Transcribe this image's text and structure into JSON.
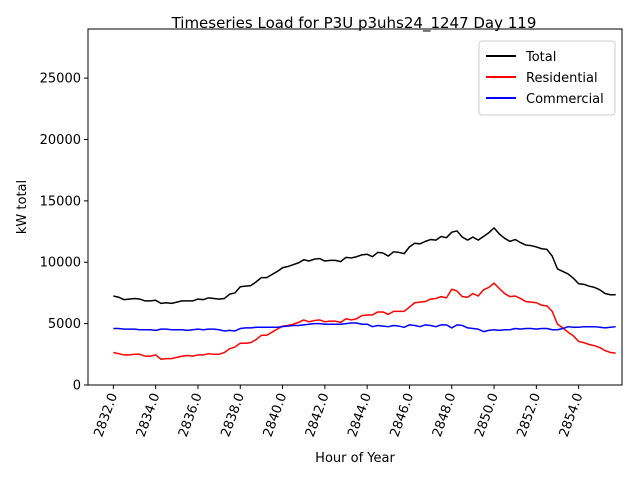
{
  "chart_data": {
    "type": "line",
    "title": "Timeseries Load for P3U p3uhs24_1247  Day 119",
    "xlabel": "Hour of Year",
    "ylabel": "kW total",
    "xlim": [
      2830.8,
      2856.05
    ],
    "ylim": [
      0,
      29000
    ],
    "xticks": [
      2832,
      2834,
      2836,
      2838,
      2840,
      2842,
      2844,
      2846,
      2848,
      2850,
      2852,
      2854
    ],
    "xtick_labels": [
      "2832.0",
      "2834.0",
      "2836.0",
      "2838.0",
      "2840.0",
      "2842.0",
      "2844.0",
      "2846.0",
      "2848.0",
      "2850.0",
      "2852.0",
      "2854.0"
    ],
    "yticks": [
      0,
      5000,
      10000,
      15000,
      20000,
      25000
    ],
    "ytick_labels": [
      "0",
      "5000",
      "10000",
      "15000",
      "20000",
      "25000"
    ],
    "legend_position": "top-right",
    "x": [
      2832.0,
      2832.25,
      2832.5,
      2832.75,
      2833.0,
      2833.25,
      2833.5,
      2833.75,
      2834.0,
      2834.25,
      2834.5,
      2834.75,
      2835.0,
      2835.25,
      2835.5,
      2835.75,
      2836.0,
      2836.25,
      2836.5,
      2836.75,
      2837.0,
      2837.25,
      2837.5,
      2837.75,
      2838.0,
      2838.25,
      2838.5,
      2838.75,
      2839.0,
      2839.25,
      2839.5,
      2839.75,
      2840.0,
      2840.25,
      2840.5,
      2840.75,
      2841.0,
      2841.25,
      2841.5,
      2841.75,
      2842.0,
      2842.25,
      2842.5,
      2842.75,
      2843.0,
      2843.25,
      2843.5,
      2843.75,
      2844.0,
      2844.25,
      2844.5,
      2844.75,
      2845.0,
      2845.25,
      2845.5,
      2845.75,
      2846.0,
      2846.25,
      2846.5,
      2846.75,
      2847.0,
      2847.25,
      2847.5,
      2847.75,
      2848.0,
      2848.25,
      2848.5,
      2848.75,
      2849.0,
      2849.25,
      2849.5,
      2849.75,
      2850.0,
      2850.25,
      2850.5,
      2850.75,
      2851.0,
      2851.25,
      2851.5,
      2851.75,
      2852.0,
      2852.25,
      2852.5,
      2852.75,
      2853.0,
      2853.25,
      2853.5,
      2853.75,
      2854.0,
      2854.25,
      2854.5,
      2854.75,
      2855.0,
      2855.25,
      2855.5,
      2855.75
    ],
    "series": [
      {
        "name": "Total",
        "color": "#000000",
        "values": [
          7250,
          7150,
          6950,
          7000,
          7050,
          7000,
          6850,
          6850,
          6900,
          6650,
          6700,
          6650,
          6750,
          6850,
          6850,
          6850,
          7000,
          6950,
          7100,
          7050,
          7000,
          7050,
          7400,
          7500,
          8000,
          8050,
          8100,
          8400,
          8750,
          8750,
          9000,
          9250,
          9550,
          9650,
          9800,
          9950,
          10200,
          10100,
          10250,
          10300,
          10100,
          10150,
          10150,
          10050,
          10400,
          10350,
          10450,
          10600,
          10650,
          10450,
          10800,
          10750,
          10500,
          10850,
          10800,
          10700,
          11250,
          11550,
          11500,
          11700,
          11850,
          11800,
          12100,
          12000,
          12450,
          12550,
          12050,
          11800,
          12050,
          11800,
          12100,
          12400,
          12800,
          12300,
          11950,
          11700,
          11850,
          11600,
          11400,
          11350,
          11250,
          11100,
          11050,
          10500,
          9450,
          9250,
          9050,
          8700,
          8250,
          8200,
          8050,
          7950,
          7750,
          7450,
          7350,
          7350
        ]
      },
      {
        "name": "Residential",
        "color": "#ff0000",
        "values": [
          2650,
          2550,
          2450,
          2450,
          2500,
          2500,
          2350,
          2350,
          2450,
          2100,
          2150,
          2150,
          2250,
          2350,
          2400,
          2350,
          2450,
          2450,
          2550,
          2500,
          2500,
          2650,
          2950,
          3100,
          3400,
          3400,
          3450,
          3700,
          4050,
          4050,
          4300,
          4550,
          4800,
          4850,
          4950,
          5100,
          5300,
          5150,
          5250,
          5300,
          5150,
          5200,
          5200,
          5100,
          5400,
          5300,
          5400,
          5650,
          5700,
          5700,
          5950,
          5950,
          5750,
          6000,
          6000,
          6000,
          6350,
          6700,
          6750,
          6800,
          7000,
          7050,
          7200,
          7100,
          7800,
          7650,
          7200,
          7150,
          7450,
          7250,
          7750,
          7950,
          8300,
          7850,
          7450,
          7200,
          7250,
          7050,
          6800,
          6750,
          6700,
          6500,
          6450,
          6000,
          4950,
          4650,
          4300,
          4000,
          3550,
          3450,
          3300,
          3200,
          3050,
          2800,
          2650,
          2600
        ]
      },
      {
        "name": "Commercial",
        "color": "#0000ff",
        "values": [
          4600,
          4600,
          4550,
          4550,
          4550,
          4500,
          4500,
          4500,
          4450,
          4550,
          4550,
          4500,
          4500,
          4500,
          4450,
          4500,
          4550,
          4500,
          4550,
          4550,
          4500,
          4400,
          4450,
          4400,
          4600,
          4650,
          4650,
          4700,
          4700,
          4700,
          4700,
          4700,
          4750,
          4800,
          4850,
          4850,
          4900,
          4950,
          5000,
          5000,
          4950,
          4950,
          4950,
          4950,
          5000,
          5050,
          5050,
          4950,
          4950,
          4750,
          4850,
          4800,
          4750,
          4850,
          4800,
          4700,
          4900,
          4850,
          4750,
          4900,
          4850,
          4750,
          4900,
          4900,
          4650,
          4900,
          4850,
          4650,
          4600,
          4550,
          4350,
          4450,
          4500,
          4450,
          4500,
          4500,
          4600,
          4550,
          4600,
          4600,
          4550,
          4600,
          4600,
          4500,
          4500,
          4600,
          4750,
          4700,
          4700,
          4750,
          4750,
          4750,
          4700,
          4650,
          4700,
          4750
        ]
      }
    ]
  }
}
